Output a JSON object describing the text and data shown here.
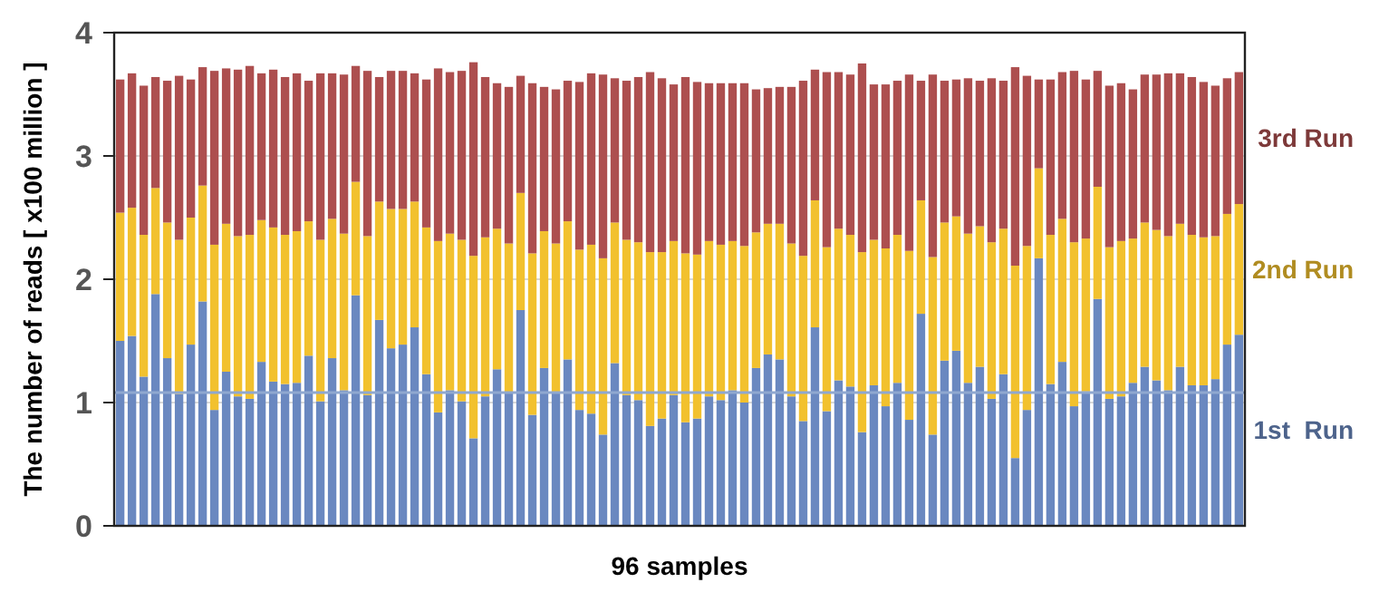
{
  "chart_data": {
    "type": "bar",
    "stacked": true,
    "xlabel": "96 samples",
    "ylabel": "The number of reads [ x100 million ]",
    "categories": [
      null,
      null,
      null,
      null,
      null,
      null,
      null,
      null,
      null,
      null,
      null,
      null,
      null,
      null,
      null,
      null,
      null,
      null,
      null,
      null,
      null,
      null,
      null,
      null,
      null,
      null,
      null,
      null,
      null,
      null,
      null,
      null,
      null,
      null,
      null,
      null,
      null,
      null,
      null,
      null,
      null,
      null,
      null,
      null,
      null,
      null,
      null,
      null,
      null,
      null,
      null,
      null,
      null,
      null,
      null,
      null,
      null,
      null,
      null,
      null,
      null,
      null,
      null,
      null,
      null,
      null,
      null,
      null,
      null,
      null,
      null,
      null,
      null,
      null,
      null,
      null,
      null,
      null,
      null,
      null,
      null,
      null,
      null,
      null,
      null,
      null,
      null,
      null,
      null,
      null,
      null,
      null,
      null,
      null,
      null,
      null
    ],
    "series": [
      {
        "name": "1st  Run",
        "color": "#6a88c0",
        "values": [
          1.5,
          1.54,
          1.21,
          1.88,
          1.36,
          1.07,
          1.47,
          1.82,
          0.94,
          1.25,
          1.05,
          1.03,
          1.33,
          1.17,
          1.15,
          1.16,
          1.38,
          1.01,
          1.36,
          1.1,
          1.87,
          1.06,
          1.67,
          1.44,
          1.47,
          1.61,
          1.23,
          0.92,
          1.1,
          1.01,
          0.71,
          1.05,
          1.27,
          1.08,
          1.75,
          0.9,
          1.28,
          1.08,
          1.35,
          0.94,
          0.91,
          0.74,
          1.32,
          1.06,
          1.02,
          0.81,
          0.87,
          1.06,
          0.84,
          0.87,
          1.05,
          1.02,
          1.1,
          1.0,
          1.28,
          1.39,
          1.35,
          1.05,
          0.85,
          1.61,
          0.93,
          1.18,
          1.13,
          0.76,
          1.14,
          0.97,
          1.16,
          0.86,
          1.72,
          0.74,
          1.34,
          1.42,
          1.16,
          1.29,
          1.03,
          1.23,
          0.55,
          0.94,
          2.17,
          1.15,
          1.33,
          0.97,
          1.09,
          1.84,
          1.03,
          1.05,
          1.16,
          1.29,
          1.18,
          1.1,
          1.29,
          1.14,
          1.14,
          1.19,
          1.47,
          1.55
        ]
      },
      {
        "name": "2nd Run",
        "color": "#f2c12e",
        "values": [
          1.04,
          1.04,
          1.15,
          0.86,
          1.1,
          1.25,
          1.03,
          0.94,
          1.34,
          1.2,
          1.3,
          1.33,
          1.15,
          1.25,
          1.21,
          1.23,
          1.09,
          1.31,
          1.13,
          1.27,
          0.92,
          1.29,
          0.96,
          1.13,
          1.1,
          1.02,
          1.19,
          1.39,
          1.27,
          1.31,
          1.48,
          1.29,
          1.14,
          1.21,
          0.95,
          1.31,
          1.11,
          1.21,
          1.12,
          1.3,
          1.37,
          1.43,
          1.14,
          1.26,
          1.28,
          1.41,
          1.35,
          1.25,
          1.37,
          1.33,
          1.26,
          1.26,
          1.21,
          1.27,
          1.1,
          1.06,
          1.1,
          1.24,
          1.34,
          1.03,
          1.33,
          1.23,
          1.23,
          1.46,
          1.18,
          1.28,
          1.2,
          1.37,
          0.92,
          1.44,
          1.12,
          1.09,
          1.21,
          1.14,
          1.27,
          1.18,
          1.56,
          1.33,
          0.73,
          1.21,
          1.16,
          1.33,
          1.24,
          0.91,
          1.23,
          1.26,
          1.17,
          1.17,
          1.22,
          1.25,
          1.16,
          1.22,
          1.2,
          1.16,
          1.06,
          1.06
        ]
      },
      {
        "name": "3rd Run",
        "color": "#ad4f4f",
        "values": [
          1.08,
          1.09,
          1.21,
          0.9,
          1.15,
          1.33,
          1.12,
          0.96,
          1.41,
          1.26,
          1.35,
          1.37,
          1.19,
          1.28,
          1.28,
          1.28,
          1.14,
          1.35,
          1.18,
          1.29,
          0.94,
          1.34,
          1.01,
          1.12,
          1.12,
          1.04,
          1.2,
          1.4,
          1.31,
          1.37,
          1.57,
          1.3,
          1.18,
          1.27,
          0.95,
          1.38,
          1.17,
          1.25,
          1.14,
          1.36,
          1.39,
          1.49,
          1.17,
          1.29,
          1.34,
          1.46,
          1.41,
          1.27,
          1.43,
          1.4,
          1.28,
          1.31,
          1.28,
          1.32,
          1.16,
          1.1,
          1.11,
          1.27,
          1.42,
          1.06,
          1.42,
          1.27,
          1.3,
          1.53,
          1.26,
          1.33,
          1.25,
          1.43,
          0.97,
          1.48,
          1.15,
          1.11,
          1.26,
          1.18,
          1.33,
          1.2,
          1.61,
          1.38,
          0.72,
          1.26,
          1.19,
          1.39,
          1.29,
          0.94,
          1.31,
          1.28,
          1.21,
          1.2,
          1.26,
          1.32,
          1.22,
          1.28,
          1.26,
          1.22,
          1.1,
          1.07
        ]
      }
    ],
    "ylim": [
      0,
      4
    ],
    "yticks": [
      0,
      1,
      2,
      3,
      4
    ],
    "grid": "y",
    "legend": "right",
    "ref_lines": [
      {
        "axis": "y",
        "value": 1.08,
        "color": "#8fa8d0"
      }
    ]
  }
}
